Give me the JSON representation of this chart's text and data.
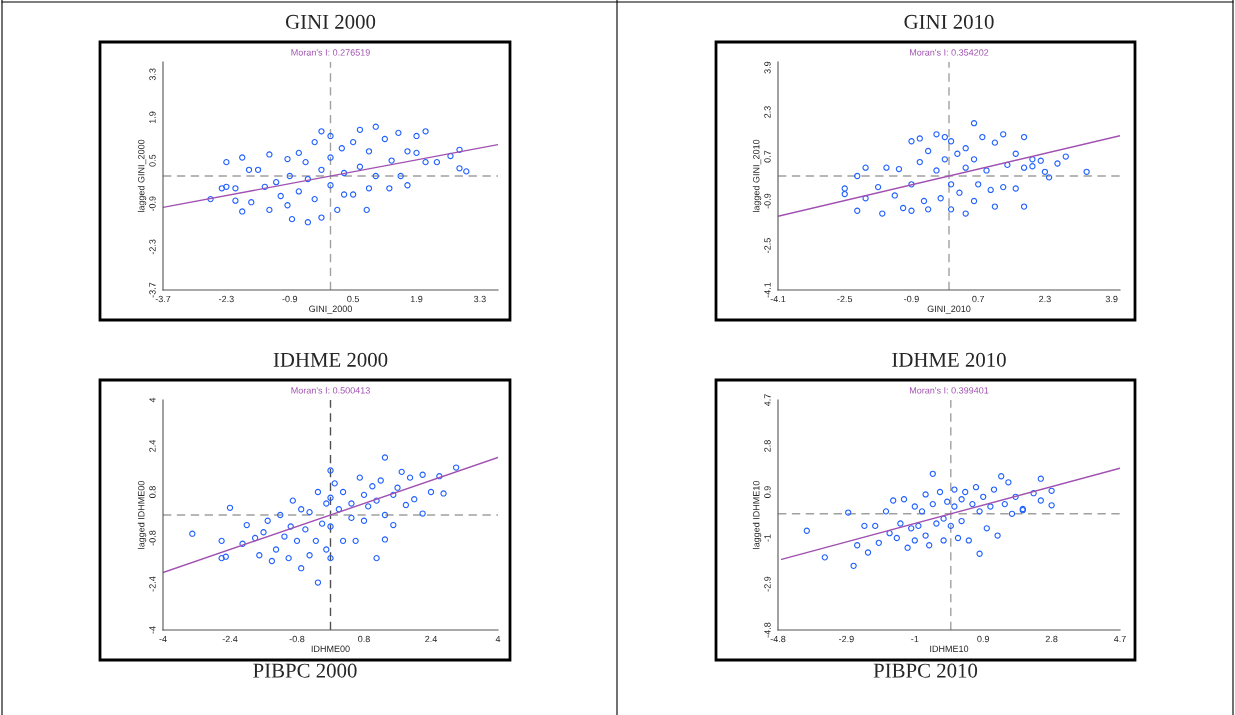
{
  "chart_data": [
    {
      "type": "scatter",
      "title": "GINI 2000",
      "subtitle": "Moran's I: 0.276519",
      "xlabel": "GINI_2000",
      "ylabel": "lagged GINI_2000",
      "xlim": [
        -3.7,
        3.7
      ],
      "ylim": [
        -3.7,
        3.7
      ],
      "xticks": [
        -3.7,
        -2.3,
        -0.9,
        0.5,
        1.9,
        3.3
      ],
      "yticks": [
        -3.7,
        -2.3,
        -0.9,
        0.5,
        1.9,
        3.3
      ],
      "grid": false,
      "ref_lines": [
        {
          "axis": "x",
          "value": 0,
          "color": "#a0a0a0",
          "line_style": "dashed"
        },
        {
          "axis": "y",
          "value": 0,
          "color": "#a0a0a0",
          "line_style": "dashed"
        }
      ],
      "series": [
        {
          "marker": "circle",
          "color": "#2060ff",
          "x": [
            -2.65,
            -2.4,
            -2.3,
            -2.3,
            -2.1,
            -2.1,
            -1.95,
            -1.95,
            -1.8,
            -1.75,
            -1.6,
            -1.45,
            -1.35,
            -1.35,
            -1.2,
            -1.1,
            -0.95,
            -0.95,
            -0.9,
            -0.85,
            -0.7,
            -0.7,
            -0.55,
            -0.5,
            -0.5,
            -0.35,
            -0.35,
            -0.2,
            -0.2,
            -0.2,
            0.0,
            0.0,
            0.0,
            0.15,
            0.25,
            0.3,
            0.3,
            0.5,
            0.5,
            0.65,
            0.65,
            0.8,
            0.85,
            0.85,
            1.0,
            1.0,
            1.2,
            1.3,
            1.35,
            1.5,
            1.55,
            1.7,
            1.7,
            1.9,
            1.9,
            2.1,
            2.1,
            2.35,
            2.65,
            2.85,
            2.85,
            3.0
          ],
          "values": [
            -0.75,
            -0.4,
            0.45,
            -0.35,
            -0.4,
            -0.8,
            0.6,
            -1.15,
            0.2,
            -0.85,
            0.2,
            -0.35,
            0.7,
            -1.1,
            -0.2,
            -0.65,
            0.55,
            -0.95,
            0.0,
            -1.4,
            0.75,
            -0.5,
            0.45,
            -1.5,
            -0.1,
            1.1,
            -0.75,
            0.2,
            1.45,
            -1.35,
            1.3,
            -0.3,
            0.6,
            -1.1,
            0.9,
            0.1,
            -0.6,
            1.1,
            -0.6,
            0.3,
            1.5,
            -1.1,
            0.8,
            -0.4,
            1.6,
            0.0,
            1.2,
            -0.4,
            0.5,
            1.4,
            0.0,
            0.8,
            -0.3,
            0.75,
            1.3,
            1.45,
            0.45,
            0.45,
            0.65,
            0.85,
            0.25,
            0.15
          ]
        },
        {
          "type": "line",
          "color": "#a050b0",
          "x": [
            -3.7,
            3.7
          ],
          "values": [
            -1.02,
            1.02
          ]
        }
      ]
    },
    {
      "type": "scatter",
      "title": "GINI 2010",
      "subtitle": "Moran's I: 0.354202",
      "xlabel": "GINI_2010",
      "ylabel": "lagged GINI_2010",
      "xlim": [
        -4.1,
        4.1
      ],
      "ylim": [
        -4.1,
        4.1
      ],
      "xticks": [
        -4.1,
        -2.5,
        -0.9,
        0.7,
        2.3,
        3.9
      ],
      "yticks": [
        -4.1,
        -2.5,
        -0.9,
        0.7,
        2.3,
        3.9
      ],
      "grid": false,
      "ref_lines": [
        {
          "axis": "x",
          "value": 0,
          "color": "#a0a0a0",
          "line_style": "dashed"
        },
        {
          "axis": "y",
          "value": 0,
          "color": "#a0a0a0",
          "line_style": "dashed"
        }
      ],
      "series": [
        {
          "marker": "circle",
          "color": "#2060ff",
          "x": [
            -2.5,
            -2.5,
            -2.2,
            -2.2,
            -2.0,
            -2.0,
            -1.7,
            -1.6,
            -1.5,
            -1.3,
            -1.2,
            -1.1,
            -0.9,
            -0.9,
            -0.9,
            -0.7,
            -0.7,
            -0.6,
            -0.5,
            -0.5,
            -0.3,
            -0.3,
            -0.2,
            -0.1,
            -0.1,
            0.05,
            0.05,
            0.05,
            0.2,
            0.25,
            0.4,
            0.4,
            0.4,
            0.6,
            0.6,
            0.6,
            0.7,
            0.8,
            0.9,
            1.0,
            1.1,
            1.1,
            1.3,
            1.3,
            1.4,
            1.6,
            1.6,
            1.8,
            1.8,
            1.8,
            2.0,
            2.0,
            2.2,
            2.3,
            2.4,
            2.6,
            2.8,
            3.3
          ],
          "values": [
            -0.45,
            -0.65,
            0.0,
            -1.25,
            0.3,
            -0.8,
            -0.4,
            -1.35,
            0.3,
            -0.7,
            0.25,
            -1.15,
            1.25,
            -0.3,
            -1.25,
            1.35,
            0.5,
            -0.9,
            0.9,
            -1.2,
            1.5,
            0.2,
            -0.8,
            1.4,
            0.6,
            1.25,
            -1.2,
            -0.3,
            0.8,
            -0.6,
            1.0,
            -1.35,
            0.3,
            0.6,
            -0.9,
            1.9,
            -0.3,
            1.4,
            0.2,
            -0.5,
            1.2,
            -1.1,
            1.5,
            -0.4,
            0.4,
            0.8,
            -0.45,
            0.3,
            1.4,
            -1.1,
            0.6,
            0.35,
            0.55,
            0.15,
            -0.05,
            0.45,
            0.7,
            0.15
          ]
        },
        {
          "type": "line",
          "color": "#a050b0",
          "x": [
            -4.1,
            4.1
          ],
          "values": [
            -1.45,
            1.45
          ]
        }
      ]
    },
    {
      "type": "scatter",
      "title": "IDHME 2000",
      "subtitle": "Moran's I: 0.500413",
      "xlabel": "IDHME00",
      "ylabel": "lagged IDHME00",
      "xlim": [
        -4,
        4
      ],
      "ylim": [
        -4,
        4
      ],
      "xticks": [
        -4,
        -2.4,
        -0.8,
        0.8,
        2.4,
        4
      ],
      "yticks": [
        -4,
        -2.4,
        -0.8,
        0.8,
        2.4,
        4
      ],
      "grid": false,
      "ref_lines": [
        {
          "axis": "x",
          "value": 0,
          "color": "#505050",
          "line_style": "dashed"
        },
        {
          "axis": "y",
          "value": 0,
          "color": "#a0a0a0",
          "line_style": "dashed"
        }
      ],
      "annotations": [
        "PIBPC 2000"
      ],
      "series": [
        {
          "marker": "circle",
          "color": "#2060ff",
          "x": [
            -3.3,
            -2.6,
            -2.6,
            -2.5,
            -2.4,
            -2.1,
            -2.0,
            -1.8,
            -1.7,
            -1.6,
            -1.5,
            -1.4,
            -1.3,
            -1.2,
            -1.1,
            -1.0,
            -0.95,
            -0.9,
            -0.8,
            -0.7,
            -0.7,
            -0.6,
            -0.5,
            -0.5,
            -0.35,
            -0.3,
            -0.3,
            -0.2,
            -0.1,
            -0.1,
            0.0,
            0.0,
            0.0,
            0.0,
            0.1,
            0.2,
            0.3,
            0.3,
            0.5,
            0.5,
            0.6,
            0.7,
            0.8,
            0.8,
            0.9,
            1.0,
            1.1,
            1.1,
            1.2,
            1.3,
            1.3,
            1.3,
            1.5,
            1.5,
            1.6,
            1.7,
            1.8,
            1.9,
            2.0,
            2.2,
            2.2,
            2.4,
            2.6,
            2.7,
            3.0
          ],
          "values": [
            -0.65,
            -1.5,
            -0.9,
            -1.45,
            0.25,
            -1.0,
            -0.35,
            -0.8,
            -1.4,
            -0.6,
            -0.2,
            -1.6,
            -1.2,
            0.0,
            -0.75,
            -1.5,
            -0.4,
            0.5,
            -0.9,
            -1.85,
            0.2,
            -0.5,
            -1.4,
            0.1,
            -0.9,
            0.8,
            -2.35,
            -0.3,
            0.4,
            -1.2,
            1.55,
            0.6,
            -0.4,
            -1.5,
            1.1,
            0.2,
            -0.9,
            0.8,
            0.4,
            -0.1,
            -0.9,
            1.3,
            0.7,
            -0.2,
            0.3,
            1.0,
            0.5,
            -1.5,
            1.2,
            2.0,
            0.0,
            -0.85,
            0.7,
            -0.35,
            0.95,
            1.5,
            0.35,
            1.3,
            0.55,
            1.4,
            0.05,
            0.8,
            1.35,
            0.75,
            1.65
          ]
        },
        {
          "type": "line",
          "color": "#a050b0",
          "x": [
            -4,
            4
          ],
          "values": [
            -2.0,
            2.0
          ]
        }
      ]
    },
    {
      "type": "scatter",
      "title": "IDHME 2010",
      "subtitle": "Moran's I: 0.399401",
      "xlabel": "IDHME10",
      "ylabel": "lagged IDHME10",
      "xlim": [
        -4.8,
        4.7
      ],
      "ylim": [
        -4.8,
        4.7
      ],
      "xticks": [
        -4.8,
        -2.9,
        -1,
        0.9,
        2.8,
        4.7
      ],
      "yticks": [
        -4.8,
        -2.9,
        -1,
        0.9,
        2.8,
        4.7
      ],
      "grid": false,
      "ref_lines": [
        {
          "axis": "x",
          "value": 0,
          "color": "#a0a0a0",
          "line_style": "dashed"
        },
        {
          "axis": "y",
          "value": 0,
          "color": "#a0a0a0",
          "line_style": "dashed"
        }
      ],
      "annotations": [
        "PIBPC 2010"
      ],
      "series": [
        {
          "marker": "circle",
          "color": "#2060ff",
          "x": [
            -4.0,
            -3.5,
            -2.85,
            -2.7,
            -2.6,
            -2.4,
            -2.3,
            -2.1,
            -2.0,
            -1.8,
            -1.7,
            -1.6,
            -1.5,
            -1.4,
            -1.3,
            -1.2,
            -1.1,
            -1.0,
            -1.0,
            -0.9,
            -0.8,
            -0.7,
            -0.7,
            -0.6,
            -0.5,
            -0.5,
            -0.4,
            -0.3,
            -0.2,
            -0.2,
            -0.1,
            0.0,
            0.1,
            0.1,
            0.2,
            0.3,
            0.3,
            0.4,
            0.5,
            0.6,
            0.7,
            0.8,
            0.8,
            0.9,
            1.0,
            1.1,
            1.2,
            1.3,
            1.4,
            1.5,
            1.6,
            1.7,
            1.8,
            2.0,
            2.0,
            2.3,
            2.5,
            2.5,
            2.8,
            2.8
          ],
          "values": [
            -0.7,
            -1.8,
            0.05,
            -2.15,
            -1.3,
            -0.5,
            -1.6,
            -0.5,
            -1.2,
            0.1,
            -0.8,
            0.55,
            -1.0,
            -0.4,
            0.6,
            -1.4,
            -0.6,
            0.3,
            -1.1,
            -0.5,
            0.1,
            -0.9,
            0.8,
            -1.3,
            1.65,
            0.4,
            -0.4,
            0.9,
            -0.2,
            -1.1,
            0.5,
            -0.5,
            0.3,
            1.0,
            -1.0,
            0.6,
            -0.3,
            0.9,
            -1.1,
            0.4,
            1.1,
            0.1,
            -1.65,
            0.7,
            -0.6,
            0.3,
            1.0,
            -0.9,
            1.55,
            0.4,
            1.3,
            0.0,
            0.7,
            0.15,
            0.2,
            0.85,
            1.45,
            0.55,
            0.35,
            0.95
          ]
        },
        {
          "type": "line",
          "color": "#a050b0",
          "x": [
            -4.7,
            4.7
          ],
          "values": [
            -1.88,
            1.88
          ]
        }
      ]
    }
  ]
}
